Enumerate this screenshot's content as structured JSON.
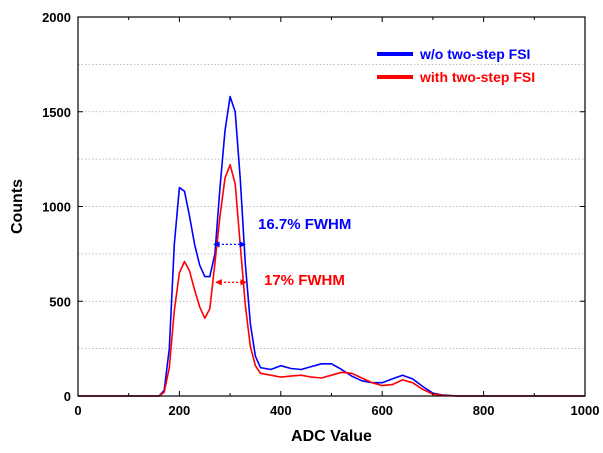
{
  "chart_data": {
    "type": "line",
    "xlabel": "ADC Value",
    "ylabel": "Counts",
    "xlim": [
      0,
      1000
    ],
    "ylim": [
      0,
      2000
    ],
    "x_ticks": [
      "0",
      "200",
      "400",
      "600",
      "800",
      "1000"
    ],
    "y_ticks": [
      "0",
      "500",
      "1000",
      "1500",
      "2000"
    ],
    "grid": "horizontal dotted",
    "legend_position": "top-right",
    "series": [
      {
        "name": "w/o two-step FSI",
        "color": "#0000ff",
        "x": [
          0,
          150,
          160,
          170,
          180,
          190,
          200,
          210,
          220,
          230,
          240,
          250,
          260,
          270,
          280,
          290,
          300,
          310,
          320,
          330,
          340,
          350,
          360,
          380,
          400,
          420,
          440,
          460,
          480,
          500,
          520,
          540,
          560,
          580,
          600,
          620,
          640,
          660,
          680,
          700,
          720,
          750,
          800,
          850,
          900,
          950,
          1000
        ],
        "y": [
          0,
          0,
          0,
          30,
          250,
          800,
          1100,
          1080,
          950,
          800,
          690,
          630,
          630,
          750,
          1100,
          1400,
          1580,
          1500,
          1150,
          700,
          380,
          210,
          150,
          140,
          160,
          145,
          140,
          155,
          170,
          170,
          140,
          105,
          80,
          70,
          70,
          90,
          110,
          90,
          50,
          15,
          5,
          0,
          0,
          0,
          0,
          0,
          0
        ]
      },
      {
        "name": "with two-step FSI",
        "color": "#ff0000",
        "x": [
          0,
          150,
          160,
          170,
          180,
          190,
          200,
          210,
          220,
          230,
          240,
          250,
          260,
          270,
          280,
          290,
          300,
          310,
          320,
          330,
          340,
          350,
          360,
          380,
          400,
          420,
          440,
          460,
          480,
          500,
          520,
          540,
          560,
          580,
          600,
          620,
          640,
          660,
          680,
          700,
          720,
          750,
          800,
          850,
          900,
          950,
          1000
        ],
        "y": [
          0,
          0,
          0,
          20,
          150,
          450,
          650,
          710,
          660,
          560,
          470,
          410,
          460,
          700,
          950,
          1150,
          1220,
          1120,
          800,
          480,
          260,
          160,
          120,
          110,
          100,
          105,
          110,
          100,
          95,
          110,
          125,
          120,
          95,
          70,
          55,
          60,
          85,
          70,
          35,
          10,
          3,
          0,
          0,
          0,
          0,
          0,
          0
        ]
      }
    ],
    "annotations": [
      {
        "text": "16.7% FWHM",
        "color": "#0000ff",
        "arrow_x": [
          268,
          330
        ],
        "arrow_y": 800
      },
      {
        "text": "17% FWHM",
        "color": "#ff0000",
        "arrow_x": [
          272,
          332
        ],
        "arrow_y": 600
      }
    ]
  }
}
